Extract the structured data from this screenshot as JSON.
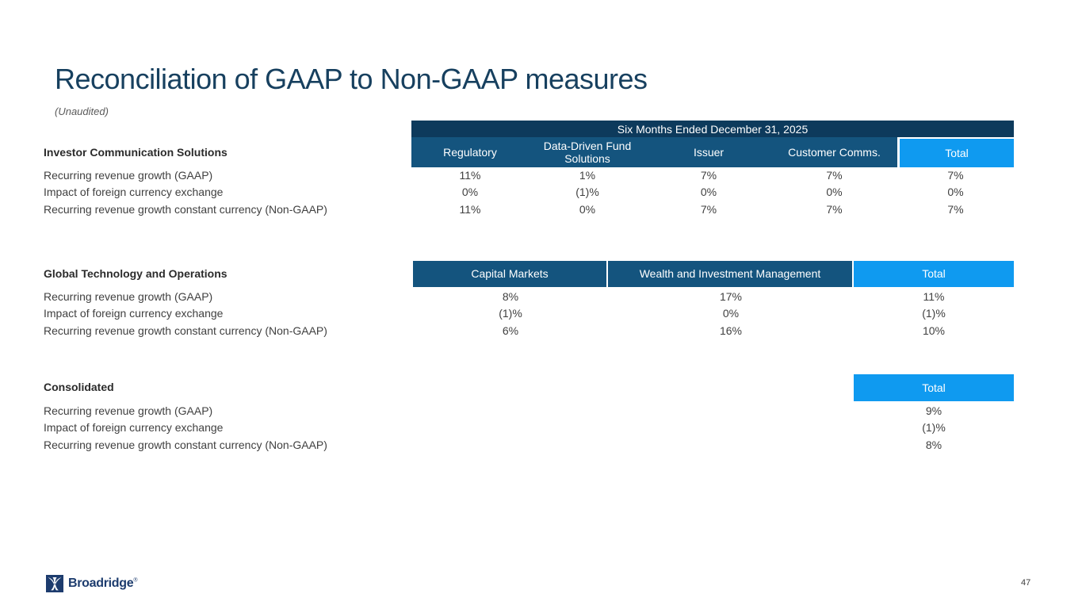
{
  "slide": {
    "title": "Reconciliation of GAAP to Non-GAAP measures",
    "unaudited": "(Unaudited)",
    "page_number": "47"
  },
  "footer": {
    "logo_text": "Broadridge",
    "logo_registered": "®"
  },
  "colors": {
    "title_text": "#17405F",
    "band_navy": "#0D3A5C",
    "header_blue": "#14547E",
    "total_blue": "#0F9AF0",
    "body_text": "#404040",
    "logo_navy": "#1D3C6E"
  },
  "tables": [
    {
      "section": "Investor Communication Solutions",
      "period_header": "Six Months Ended December 31, 2025",
      "columns": [
        "Regulatory",
        "Data-Driven Fund Solutions",
        "Issuer",
        "Customer Comms.",
        "Total"
      ],
      "rows": [
        {
          "label": "Recurring revenue growth (GAAP)",
          "values": [
            "11%",
            "1%",
            "7%",
            "7%",
            "7%"
          ]
        },
        {
          "label": "Impact of foreign currency exchange",
          "values": [
            "0%",
            "(1)%",
            "0%",
            "0%",
            "0%"
          ]
        },
        {
          "label": "Recurring revenue growth constant currency (Non-GAAP)",
          "values": [
            "11%",
            "0%",
            "7%",
            "7%",
            "7%"
          ]
        }
      ]
    },
    {
      "section": "Global Technology and Operations",
      "columns": [
        "Capital Markets",
        "Wealth and Investment Management",
        "Total"
      ],
      "rows": [
        {
          "label": "Recurring revenue growth (GAAP)",
          "values": [
            "8%",
            "17%",
            "11%"
          ]
        },
        {
          "label": "Impact of foreign currency exchange",
          "values": [
            "(1)%",
            "0%",
            "(1)%"
          ]
        },
        {
          "label": "Recurring revenue growth constant currency (Non-GAAP)",
          "values": [
            "6%",
            "16%",
            "10%"
          ]
        }
      ]
    },
    {
      "section": "Consolidated",
      "columns": [
        "Total"
      ],
      "rows": [
        {
          "label": "Recurring revenue growth (GAAP)",
          "values": [
            "9%"
          ]
        },
        {
          "label": "Impact of foreign currency exchange",
          "values": [
            "(1)%"
          ]
        },
        {
          "label": "Recurring revenue growth constant currency (Non-GAAP)",
          "values": [
            "8%"
          ]
        }
      ]
    }
  ]
}
